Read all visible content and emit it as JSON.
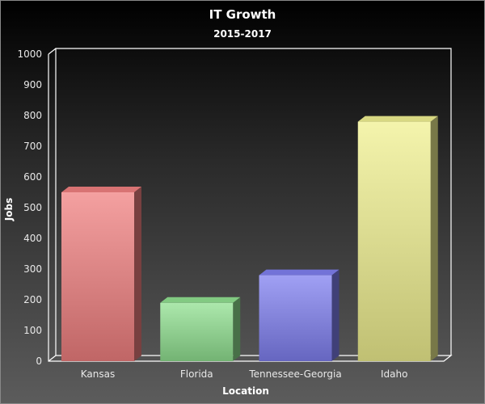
{
  "chart_data": {
    "type": "bar",
    "title": "IT Growth",
    "subtitle": "2015-2017",
    "xlabel": "Location",
    "ylabel": "Jobs",
    "categories": [
      "Kansas",
      "Florida",
      "Tennessee-Georgia",
      "Idaho"
    ],
    "values": [
      550,
      190,
      280,
      780
    ],
    "ylim": [
      0,
      1000
    ],
    "yticks": [
      0,
      100,
      200,
      300,
      400,
      500,
      600,
      700,
      800,
      900,
      1000
    ],
    "grid": false,
    "legend": "none",
    "style": "3d",
    "colors": [
      "#f08080",
      "#90e090",
      "#8080f0",
      "#f0f090"
    ]
  }
}
